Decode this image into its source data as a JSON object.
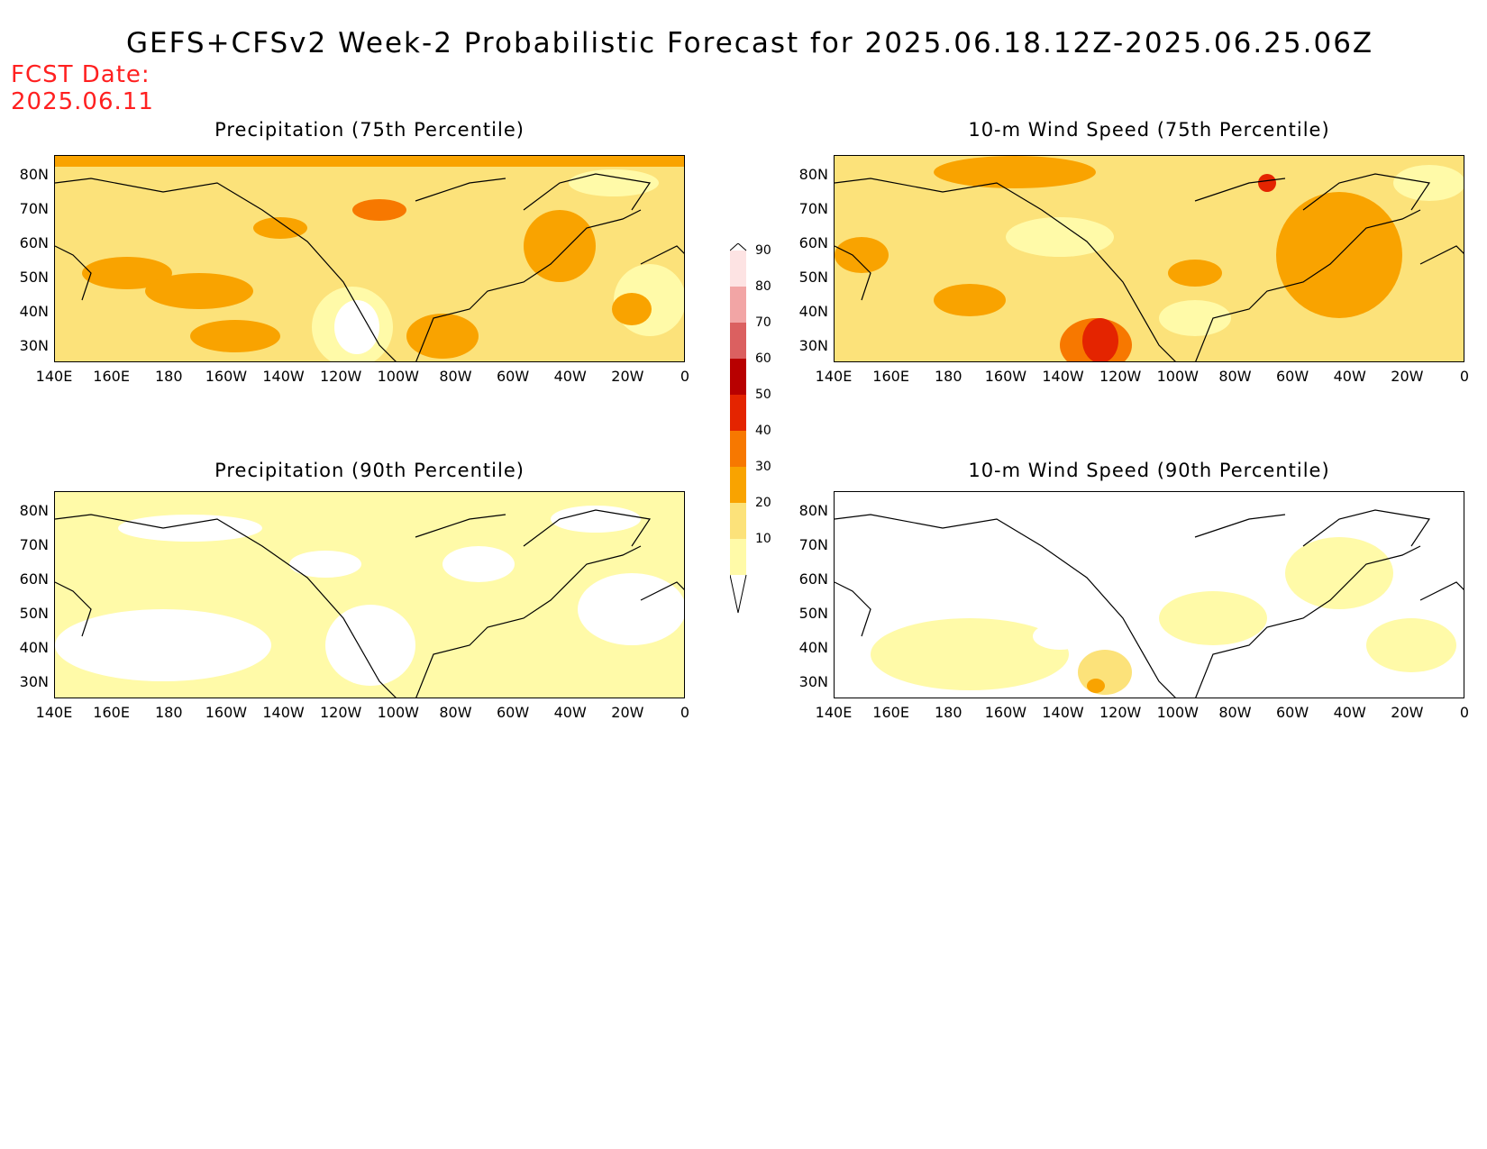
{
  "title": "GEFS+CFSv2 Week-2 Probabilistic Forecast for 2025.06.18.12Z-2025.06.25.06Z",
  "fcst_label": "FCST Date:",
  "fcst_date": "2025.06.11",
  "panels": [
    {
      "title": "Precipitation (75th Percentile)"
    },
    {
      "title": "10-m Wind Speed (75th Percentile)"
    },
    {
      "title": "Precipitation (90th Percentile)"
    },
    {
      "title": "10-m Wind Speed (90th Percentile)"
    }
  ],
  "lat_ticks": [
    "80N",
    "70N",
    "60N",
    "50N",
    "40N",
    "30N"
  ],
  "lon_ticks": [
    "140E",
    "160E",
    "180",
    "160W",
    "140W",
    "120W",
    "100W",
    "80W",
    "60W",
    "40W",
    "20W",
    "0"
  ],
  "colorbar": {
    "levels": [
      "10",
      "20",
      "30",
      "40",
      "50",
      "60",
      "70",
      "80",
      "90"
    ],
    "colors": [
      "#fffaa8",
      "#fce27a",
      "#f9a300",
      "#f77800",
      "#e42400",
      "#b80000",
      "#db6060",
      "#f2a5a5",
      "#fde3e3"
    ]
  }
}
